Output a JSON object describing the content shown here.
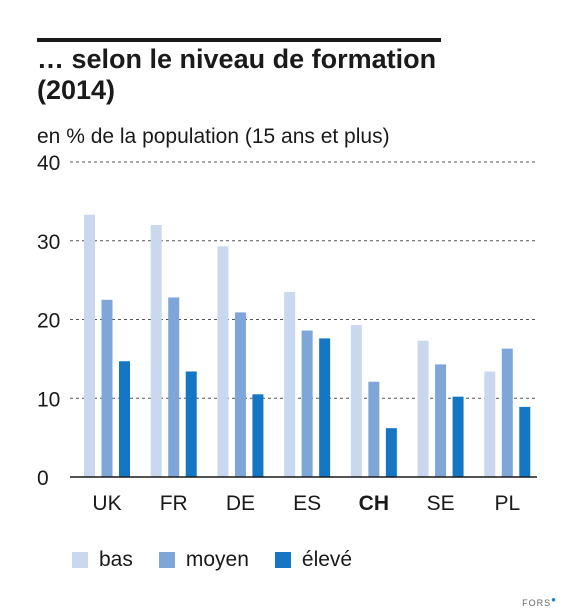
{
  "header": {
    "title": "… selon le niveau de formation (2014)",
    "subtitle": "en % de la population (15 ans et plus)"
  },
  "source": {
    "label": "FORS"
  },
  "colors": {
    "bas": "#c9d8ee",
    "moyen": "#7ea6d9",
    "eleve": "#1576c3",
    "grid": "#555555"
  },
  "chart_data": {
    "type": "bar",
    "title": "… selon le niveau de formation (2014)",
    "ylabel": "en % de la population (15 ans et plus)",
    "xlabel": "",
    "categories": [
      "UK",
      "FR",
      "DE",
      "ES",
      "CH",
      "SE",
      "PL"
    ],
    "highlight_category": "CH",
    "ylim": [
      0,
      40
    ],
    "yticks": [
      0,
      10,
      20,
      30,
      40
    ],
    "grid": "horizontal dashed",
    "legend_position": "bottom",
    "series": [
      {
        "name": "bas",
        "values": [
          33.3,
          32.0,
          29.3,
          23.5,
          19.3,
          17.3,
          13.4
        ]
      },
      {
        "name": "moyen",
        "values": [
          22.5,
          22.8,
          20.9,
          18.6,
          12.1,
          14.3,
          16.3
        ]
      },
      {
        "name": "élevé",
        "values": [
          14.7,
          13.4,
          10.5,
          17.6,
          6.2,
          10.2,
          8.9
        ]
      }
    ]
  }
}
